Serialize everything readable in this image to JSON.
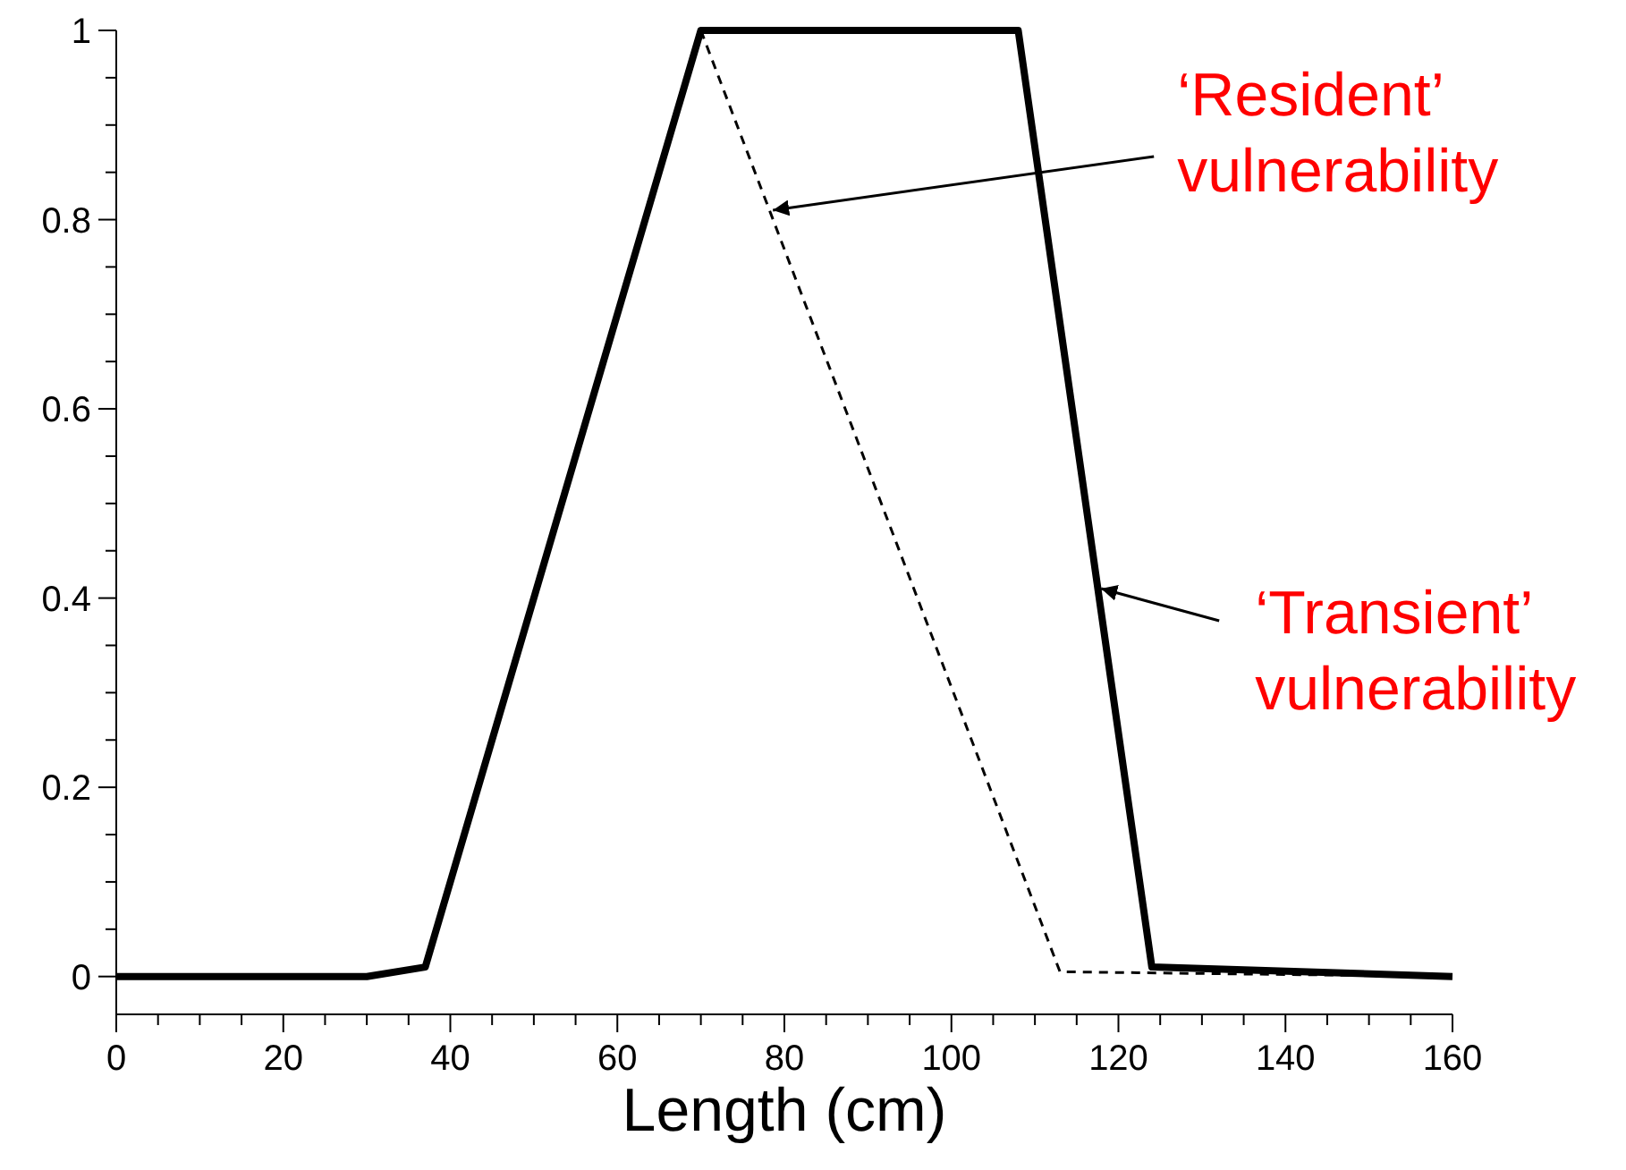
{
  "chart_data": {
    "type": "line",
    "xlabel": "Length (cm)",
    "xlim": [
      0,
      160
    ],
    "ylim": [
      -0.04,
      1
    ],
    "xticks": [
      0,
      {
        "value": 5,
        "label": null
      },
      {
        "value": 10,
        "label": null
      },
      {
        "value": 15,
        "label": null
      },
      20,
      {
        "value": 25,
        "label": null
      },
      {
        "value": 30,
        "label": null
      },
      {
        "value": 35,
        "label": null
      },
      40,
      {
        "value": 45,
        "label": null
      },
      {
        "value": 50,
        "label": null
      },
      {
        "value": 55,
        "label": null
      },
      60,
      {
        "value": 65,
        "label": null
      },
      {
        "value": 70,
        "label": null
      },
      {
        "value": 75,
        "label": null
      },
      80,
      {
        "value": 85,
        "label": null
      },
      {
        "value": 90,
        "label": null
      },
      {
        "value": 95,
        "label": null
      },
      100,
      {
        "value": 105,
        "label": null
      },
      {
        "value": 110,
        "label": null
      },
      {
        "value": 115,
        "label": null
      },
      120,
      {
        "value": 125,
        "label": null
      },
      {
        "value": 130,
        "label": null
      },
      {
        "value": 135,
        "label": null
      },
      140,
      {
        "value": 145,
        "label": null
      },
      {
        "value": 150,
        "label": null
      },
      {
        "value": 155,
        "label": null
      },
      160
    ],
    "yticks": [
      0,
      {
        "value": 0.05,
        "label": null
      },
      {
        "value": 0.1,
        "label": null
      },
      {
        "value": 0.15,
        "label": null
      },
      0.2,
      {
        "value": 0.25,
        "label": null
      },
      {
        "value": 0.3,
        "label": null
      },
      {
        "value": 0.35,
        "label": null
      },
      0.4,
      {
        "value": 0.45,
        "label": null
      },
      {
        "value": 0.5,
        "label": null
      },
      {
        "value": 0.55,
        "label": null
      },
      0.6,
      {
        "value": 0.65,
        "label": null
      },
      {
        "value": 0.7,
        "label": null
      },
      {
        "value": 0.75,
        "label": null
      },
      0.8,
      {
        "value": 0.85,
        "label": null
      },
      {
        "value": 0.9,
        "label": null
      },
      {
        "value": 0.95,
        "label": null
      },
      1
    ],
    "grid": false,
    "series": [
      {
        "color": "#000000",
        "line_style": "solid",
        "x": [
          0,
          30,
          37,
          70,
          108,
          124,
          160
        ],
        "values": [
          0,
          0,
          0.01,
          1,
          1,
          0.01,
          0
        ]
      },
      {
        "color": "#000000",
        "line_style": "dashed",
        "x": [
          70,
          113,
          160
        ],
        "values": [
          1,
          0.005,
          0
        ]
      }
    ],
    "annotations": [
      {
        "text": "‘Resident’ vulnerability",
        "x": 78.2,
        "y": 0.81
      },
      {
        "text": "‘Transient’ vulnerability",
        "x": 117.5,
        "y": 0.41
      }
    ]
  }
}
